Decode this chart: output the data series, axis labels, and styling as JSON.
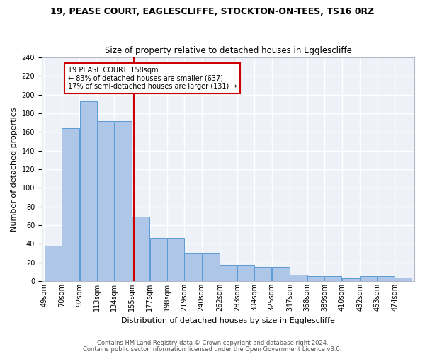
{
  "title1": "19, PEASE COURT, EAGLESCLIFFE, STOCKTON-ON-TEES, TS16 0RZ",
  "title2": "Size of property relative to detached houses in Egglescliffe",
  "xlabel": "Distribution of detached houses by size in Egglescliffe",
  "ylabel": "Number of detached properties",
  "bin_labels": [
    "49sqm",
    "70sqm",
    "92sqm",
    "113sqm",
    "134sqm",
    "155sqm",
    "177sqm",
    "198sqm",
    "219sqm",
    "240sqm",
    "262sqm",
    "283sqm",
    "304sqm",
    "325sqm",
    "347sqm",
    "368sqm",
    "389sqm",
    "410sqm",
    "432sqm",
    "453sqm",
    "474sqm"
  ],
  "bar_color": "#aec6e8",
  "bar_edge_color": "#5b9bd5",
  "bar_heights": [
    38,
    164,
    193,
    172,
    172,
    69,
    46,
    46,
    30,
    30,
    17,
    17,
    15,
    15,
    7,
    5,
    5,
    3,
    5,
    5,
    4
  ],
  "bin_edges": [
    49,
    70,
    92,
    113,
    134,
    155,
    177,
    198,
    219,
    240,
    262,
    283,
    304,
    325,
    347,
    368,
    389,
    410,
    432,
    453,
    474,
    495
  ],
  "annotation_title": "19 PEASE COURT: 158sqm",
  "annotation_line1": "← 83% of detached houses are smaller (637)",
  "annotation_line2": "17% of semi-detached houses are larger (131) →",
  "annotation_box_color": "#ffffff",
  "annotation_box_edge": "#cc0000",
  "vline_color": "#cc0000",
  "vline_x": 158,
  "ylim": [
    0,
    240
  ],
  "yticks": [
    0,
    20,
    40,
    60,
    80,
    100,
    120,
    140,
    160,
    180,
    200,
    220,
    240
  ],
  "footer1": "Contains HM Land Registry data © Crown copyright and database right 2024.",
  "footer2": "Contains public sector information licensed under the Open Government Licence v3.0.",
  "plot_bg": "#eef2f8"
}
